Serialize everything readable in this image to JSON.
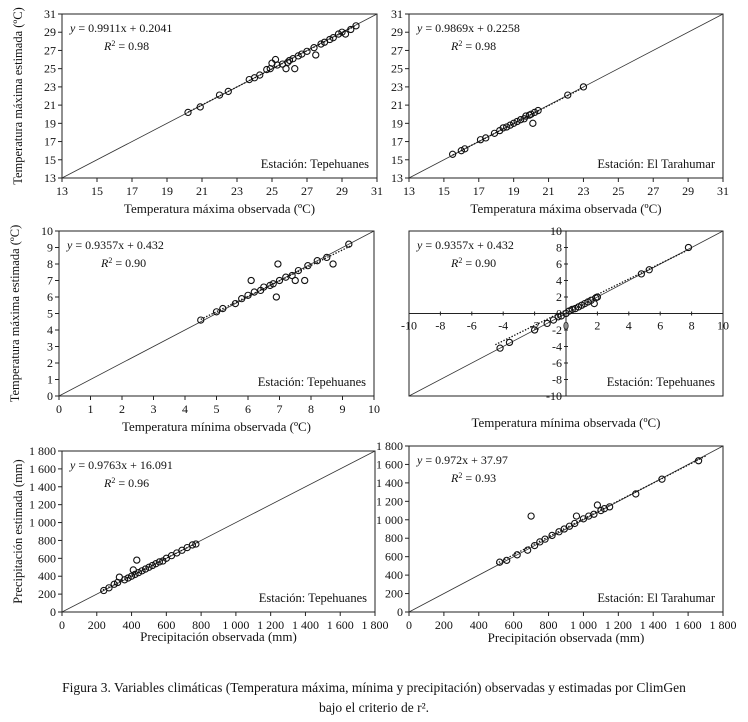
{
  "caption": {
    "line1": "Figura 3. Variables climáticas (Temperatura máxima, mínima y precipitación) observadas y estimadas por ClimGen",
    "line2": "bajo el criterio de r²."
  },
  "chart_data": [
    {
      "id": "p1",
      "type": "scatter",
      "title": "",
      "xlabel": "Temperatura máxima observada (ºC)",
      "ylabel": "Temperatura máxima estimada (ºC)",
      "xlim": [
        13,
        31
      ],
      "ylim": [
        13,
        31
      ],
      "xticks": [
        13,
        15,
        17,
        19,
        21,
        23,
        25,
        27,
        29,
        31
      ],
      "yticks": [
        13,
        15,
        17,
        19,
        21,
        23,
        25,
        27,
        29,
        31
      ],
      "xtick_labels": [
        "13",
        "15",
        "17",
        "19",
        "21",
        "23",
        "25",
        "27",
        "29",
        "31"
      ],
      "ytick_labels": [
        "13",
        "15",
        "17",
        "19",
        "21",
        "23",
        "25",
        "27",
        "29",
        "31"
      ],
      "equation": "y = 0.9911x + 0.2041",
      "r2_label": "R² = 0.98",
      "station": "Estación: Tepehuanes",
      "axes_at_zero": false,
      "one_to_one_line": true,
      "regression": {
        "slope": 0.9911,
        "intercept": 0.2041,
        "from": 20.2,
        "to": 29.8
      },
      "series": [
        {
          "points": [
            [
              20.2,
              20.2
            ],
            [
              20.9,
              20.8
            ],
            [
              22.0,
              22.1
            ],
            [
              22.5,
              22.5
            ],
            [
              23.7,
              23.8
            ],
            [
              24.0,
              24.0
            ],
            [
              24.3,
              24.3
            ],
            [
              24.7,
              24.9
            ],
            [
              24.9,
              25.0
            ],
            [
              25.0,
              25.6
            ],
            [
              25.2,
              26.0
            ],
            [
              25.3,
              25.4
            ],
            [
              25.6,
              25.5
            ],
            [
              25.8,
              25.0
            ],
            [
              25.9,
              25.7
            ],
            [
              26.0,
              25.9
            ],
            [
              26.2,
              26.1
            ],
            [
              26.3,
              25.0
            ],
            [
              26.5,
              26.4
            ],
            [
              26.7,
              26.6
            ],
            [
              27.0,
              26.9
            ],
            [
              27.4,
              27.3
            ],
            [
              27.5,
              26.5
            ],
            [
              27.8,
              27.7
            ],
            [
              28.0,
              27.9
            ],
            [
              28.3,
              28.2
            ],
            [
              28.5,
              28.4
            ],
            [
              28.8,
              28.8
            ],
            [
              29.0,
              29.0
            ],
            [
              29.2,
              28.8
            ],
            [
              29.5,
              29.3
            ],
            [
              29.8,
              29.7
            ]
          ]
        }
      ]
    },
    {
      "id": "p2",
      "type": "scatter",
      "title": "",
      "xlabel": "Temperatura máxima observada (ºC)",
      "ylabel": "",
      "xlim": [
        13,
        31
      ],
      "ylim": [
        13,
        31
      ],
      "xticks": [
        13,
        15,
        17,
        19,
        21,
        23,
        25,
        27,
        29,
        31
      ],
      "yticks": [
        13,
        15,
        17,
        19,
        21,
        23,
        25,
        27,
        29,
        31
      ],
      "xtick_labels": [
        "13",
        "15",
        "17",
        "19",
        "21",
        "23",
        "25",
        "27",
        "29",
        "31"
      ],
      "ytick_labels": [
        "13",
        "15",
        "17",
        "19",
        "21",
        "23",
        "25",
        "27",
        "29",
        "31"
      ],
      "equation": "y = 0.9869x + 0.2258",
      "r2_label": "R² = 0.98",
      "station": "Estación: El Tarahumar",
      "axes_at_zero": false,
      "one_to_one_line": true,
      "regression": {
        "slope": 0.9869,
        "intercept": 0.2258,
        "from": 15.5,
        "to": 23.0
      },
      "series": [
        {
          "points": [
            [
              15.5,
              15.6
            ],
            [
              16.0,
              16.0
            ],
            [
              16.2,
              16.2
            ],
            [
              17.1,
              17.2
            ],
            [
              17.4,
              17.4
            ],
            [
              17.9,
              17.9
            ],
            [
              18.2,
              18.2
            ],
            [
              18.4,
              18.5
            ],
            [
              18.6,
              18.6
            ],
            [
              18.8,
              18.8
            ],
            [
              19.0,
              19.0
            ],
            [
              19.2,
              19.2
            ],
            [
              19.4,
              19.4
            ],
            [
              19.6,
              19.5
            ],
            [
              19.7,
              19.8
            ],
            [
              19.9,
              19.9
            ],
            [
              20.0,
              20.0
            ],
            [
              20.1,
              19.0
            ],
            [
              20.2,
              20.2
            ],
            [
              20.4,
              20.4
            ],
            [
              22.1,
              22.1
            ],
            [
              23.0,
              23.0
            ]
          ]
        }
      ]
    },
    {
      "id": "p3",
      "type": "scatter",
      "title": "",
      "xlabel": "Temperatura mínima observada (ºC)",
      "ylabel": "Temperatura máxima estimada (ºC)",
      "xlim": [
        0,
        10
      ],
      "ylim": [
        0,
        10
      ],
      "xticks": [
        0,
        1,
        2,
        3,
        4,
        5,
        6,
        7,
        8,
        9,
        10
      ],
      "yticks": [
        0,
        1,
        2,
        3,
        4,
        5,
        6,
        7,
        8,
        9,
        10
      ],
      "xtick_labels": [
        "0",
        "1",
        "2",
        "3",
        "4",
        "5",
        "6",
        "7",
        "8",
        "9",
        "10"
      ],
      "ytick_labels": [
        "0",
        "1",
        "2",
        "3",
        "4",
        "5",
        "6",
        "7",
        "8",
        "9",
        "10"
      ],
      "equation": "y = 0.9357x + 0.432",
      "r2_label": "R² = 0.90",
      "station": "Estación: Tepehuanes",
      "axes_at_zero": false,
      "one_to_one_line": true,
      "regression": {
        "slope": 0.9357,
        "intercept": 0.432,
        "from": 4.5,
        "to": 9.3
      },
      "series": [
        {
          "points": [
            [
              4.5,
              4.6
            ],
            [
              5.0,
              5.1
            ],
            [
              5.2,
              5.3
            ],
            [
              5.6,
              5.6
            ],
            [
              5.8,
              5.9
            ],
            [
              6.0,
              6.1
            ],
            [
              6.1,
              7.0
            ],
            [
              6.2,
              6.3
            ],
            [
              6.4,
              6.4
            ],
            [
              6.5,
              6.6
            ],
            [
              6.7,
              6.7
            ],
            [
              6.8,
              6.8
            ],
            [
              6.9,
              6.0
            ],
            [
              6.95,
              8.0
            ],
            [
              7.0,
              7.0
            ],
            [
              7.2,
              7.2
            ],
            [
              7.4,
              7.3
            ],
            [
              7.5,
              7.0
            ],
            [
              7.6,
              7.6
            ],
            [
              7.8,
              7.0
            ],
            [
              7.9,
              7.9
            ],
            [
              8.2,
              8.2
            ],
            [
              8.5,
              8.4
            ],
            [
              8.7,
              8.0
            ],
            [
              9.2,
              9.2
            ]
          ]
        }
      ]
    },
    {
      "id": "p4",
      "type": "scatter",
      "title": "",
      "xlabel": "Temperatura mínima observada (ºC)",
      "ylabel": "",
      "xlim": [
        -10,
        10
      ],
      "ylim": [
        -10,
        10
      ],
      "xticks": [
        -10,
        -8,
        -6,
        -4,
        -2,
        0,
        2,
        4,
        6,
        8,
        10
      ],
      "yticks": [
        -10,
        -8,
        -6,
        -4,
        -2,
        0,
        2,
        4,
        6,
        8,
        10
      ],
      "xtick_labels": [
        "-10",
        "-8",
        "-6",
        "-4",
        "-2",
        "0",
        "2",
        "4",
        "6",
        "8",
        "10"
      ],
      "ytick_labels": [
        "-10",
        "-8",
        "-6",
        "-4",
        "-2",
        "0",
        "2",
        "4",
        "6",
        "8",
        "10"
      ],
      "equation": "y = 0.9357x + 0.432",
      "r2_label": "R² = 0.90",
      "station": "Estación: Tepehuanes",
      "axes_at_zero": true,
      "one_to_one_line": true,
      "regression": {
        "slope": 0.9357,
        "intercept": 0.432,
        "from": -4.5,
        "to": 7.8
      },
      "series": [
        {
          "points": [
            [
              -4.2,
              -4.2
            ],
            [
              -3.6,
              -3.5
            ],
            [
              -2.0,
              -2.0
            ],
            [
              -1.2,
              -1.2
            ],
            [
              -0.8,
              -0.8
            ],
            [
              -0.5,
              -0.4
            ],
            [
              -0.3,
              -0.3
            ],
            [
              0.0,
              0.0
            ],
            [
              0.2,
              0.3
            ],
            [
              0.4,
              0.5
            ],
            [
              0.6,
              0.6
            ],
            [
              0.8,
              0.8
            ],
            [
              1.0,
              1.0
            ],
            [
              1.2,
              1.2
            ],
            [
              1.4,
              1.4
            ],
            [
              1.6,
              1.6
            ],
            [
              1.8,
              1.2
            ],
            [
              1.9,
              1.9
            ],
            [
              2.0,
              2.0
            ],
            [
              4.8,
              4.8
            ],
            [
              5.3,
              5.3
            ],
            [
              7.8,
              8.0
            ]
          ]
        }
      ]
    },
    {
      "id": "p5",
      "type": "scatter",
      "title": "",
      "xlabel": "Precipitación observada (mm)",
      "ylabel": "Precipitación estimada (mm)",
      "xlim": [
        0,
        1800
      ],
      "ylim": [
        0,
        1800
      ],
      "xticks": [
        0,
        200,
        400,
        600,
        800,
        1000,
        1200,
        1400,
        1600,
        1800
      ],
      "yticks": [
        0,
        200,
        400,
        600,
        800,
        1000,
        1200,
        1400,
        1600,
        1800
      ],
      "xtick_labels": [
        "0",
        "200",
        "400",
        "600",
        "800",
        "1 000",
        "1 200",
        "1 400",
        "1 600",
        "1 800"
      ],
      "ytick_labels": [
        "0",
        "200",
        "400",
        "600",
        "800",
        "1 000",
        "1 200",
        "1 400",
        "1 600",
        "1 800"
      ],
      "equation": "y = 0.9763x + 16.091",
      "r2_label": "R² = 0.96",
      "station": "Estación: Tepehuanes",
      "axes_at_zero": false,
      "one_to_one_line": true,
      "regression": {
        "slope": 0.9763,
        "intercept": 16.091,
        "from": 220,
        "to": 780
      },
      "series": [
        {
          "points": [
            [
              240,
              240
            ],
            [
              270,
              270
            ],
            [
              300,
              310
            ],
            [
              320,
              330
            ],
            [
              330,
              390
            ],
            [
              360,
              360
            ],
            [
              380,
              380
            ],
            [
              400,
              400
            ],
            [
              410,
              470
            ],
            [
              420,
              420
            ],
            [
              430,
              580
            ],
            [
              440,
              440
            ],
            [
              460,
              460
            ],
            [
              480,
              480
            ],
            [
              500,
              500
            ],
            [
              520,
              520
            ],
            [
              540,
              540
            ],
            [
              560,
              560
            ],
            [
              580,
              570
            ],
            [
              600,
              600
            ],
            [
              630,
              630
            ],
            [
              660,
              660
            ],
            [
              690,
              690
            ],
            [
              720,
              720
            ],
            [
              750,
              750
            ],
            [
              770,
              760
            ]
          ]
        }
      ]
    },
    {
      "id": "p6",
      "type": "scatter",
      "title": "",
      "xlabel": "Precipitación observada (mm)",
      "ylabel": "",
      "xlim": [
        0,
        1800
      ],
      "ylim": [
        0,
        1800
      ],
      "xticks": [
        0,
        200,
        400,
        600,
        800,
        1000,
        1200,
        1400,
        1600,
        1800
      ],
      "yticks": [
        0,
        200,
        400,
        600,
        800,
        1000,
        1200,
        1400,
        1600,
        1800
      ],
      "xtick_labels": [
        "0",
        "200",
        "400",
        "600",
        "800",
        "1 000",
        "1 200",
        "1 400",
        "1 600",
        "1 800"
      ],
      "ytick_labels": [
        "0",
        "200",
        "400",
        "600",
        "800",
        "1 000",
        "1 200",
        "1 400",
        "1 600",
        "1 800"
      ],
      "equation": "y = 0.972x + 37.97",
      "r2_label": "R² = 0.93",
      "station": "Estación: El Tarahumar",
      "axes_at_zero": false,
      "one_to_one_line": true,
      "regression": {
        "slope": 0.972,
        "intercept": 37.97,
        "from": 500,
        "to": 1700
      },
      "series": [
        {
          "points": [
            [
              520,
              540
            ],
            [
              560,
              560
            ],
            [
              620,
              620
            ],
            [
              680,
              670
            ],
            [
              700,
              1040
            ],
            [
              720,
              720
            ],
            [
              750,
              760
            ],
            [
              780,
              790
            ],
            [
              820,
              830
            ],
            [
              860,
              870
            ],
            [
              890,
              900
            ],
            [
              920,
              930
            ],
            [
              950,
              960
            ],
            [
              960,
              1040
            ],
            [
              1000,
              1010
            ],
            [
              1030,
              1040
            ],
            [
              1060,
              1060
            ],
            [
              1080,
              1160
            ],
            [
              1100,
              1100
            ],
            [
              1120,
              1120
            ],
            [
              1150,
              1140
            ],
            [
              1300,
              1280
            ],
            [
              1450,
              1440
            ],
            [
              1660,
              1640
            ]
          ]
        }
      ]
    }
  ]
}
